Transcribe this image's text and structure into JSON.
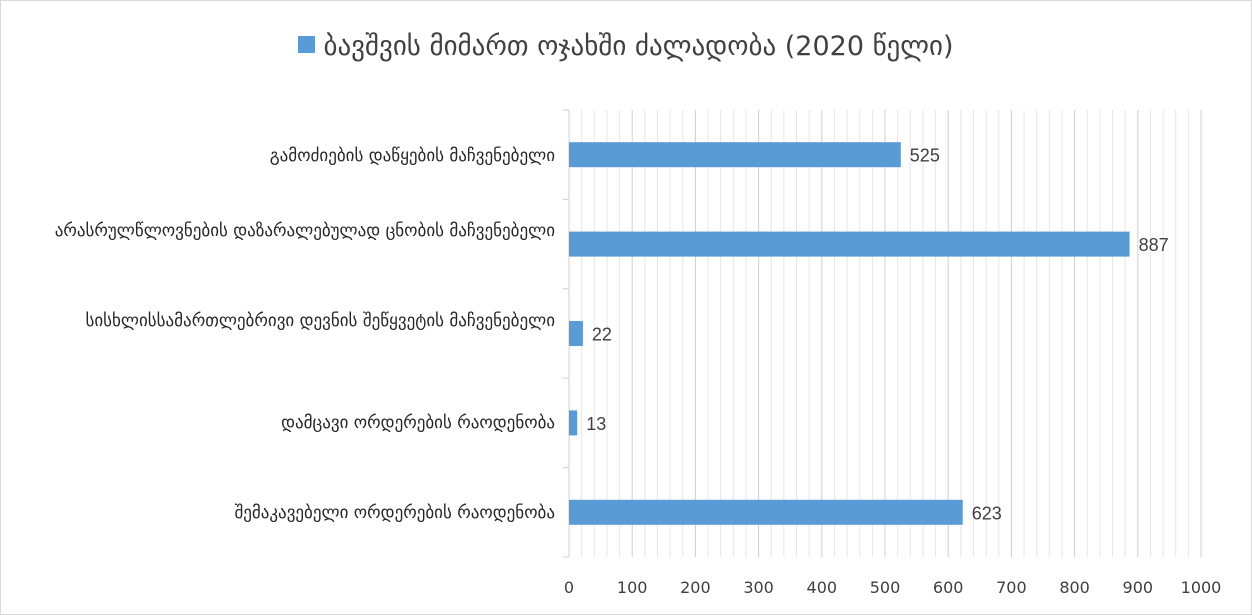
{
  "chart_data": {
    "type": "bar",
    "orientation": "horizontal",
    "title": "",
    "series": [
      {
        "name": "ბავშვის მიმართ ოჯახში ძალადობა (2020 წელი)",
        "color": "#5b9bd5",
        "values": [
          525,
          887,
          22,
          13,
          623
        ]
      }
    ],
    "categories": [
      "გამოძიების დაწყების მაჩვენებელი",
      "არასრულწლოვნების დაზარალებულად ცნობის მაჩვენებელი",
      "სისხლისსამართლებრივი დევნის შეწყვეტის მაჩვენებელი",
      "დამცავი ორდერების რაოდენობა",
      "შემაკავებელი ორდერების რაოდენობა"
    ],
    "xlim": [
      0,
      1000
    ],
    "x_ticks": [
      "0",
      "100",
      "200",
      "300",
      "400",
      "500",
      "600",
      "700",
      "800",
      "900",
      "1000"
    ],
    "data_labels": [
      "525",
      "887",
      "22",
      "13",
      "623"
    ],
    "grid": true,
    "legend_position": "top"
  }
}
